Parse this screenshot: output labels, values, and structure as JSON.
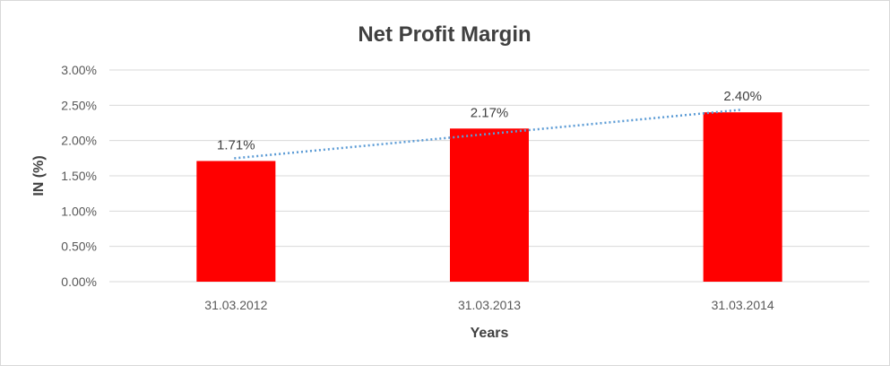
{
  "chart_data": {
    "type": "bar",
    "title": "Net Profit Margin",
    "xlabel": "Years",
    "ylabel": "IN (%)",
    "categories": [
      "31.03.2012",
      "31.03.2013",
      "31.03.2014"
    ],
    "values": [
      1.71,
      2.17,
      2.4
    ],
    "data_labels": [
      "1.71%",
      "2.17%",
      "2.40%"
    ],
    "ylim": [
      0,
      3
    ],
    "yticks": [
      "0.00%",
      "0.50%",
      "1.00%",
      "1.50%",
      "2.00%",
      "2.50%",
      "3.00%"
    ],
    "grid": true,
    "trendline": "linear",
    "colors": {
      "bar": "#ff0000",
      "trendline": "#5b9bd5",
      "grid": "#d9d9d9"
    }
  }
}
